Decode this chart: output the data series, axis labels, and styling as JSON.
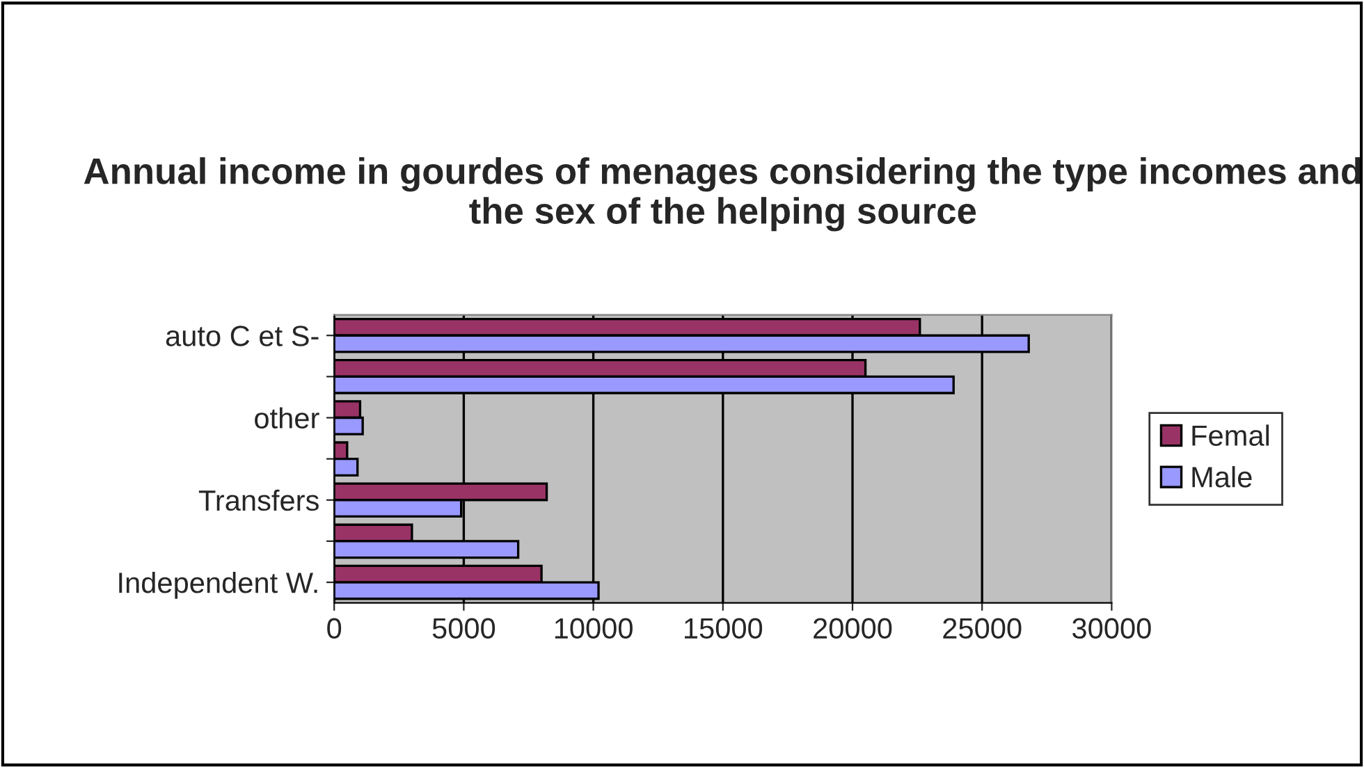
{
  "chart_data": {
    "type": "bar",
    "orientation": "horizontal",
    "title": "Annual income in gourdes of menages considering the type incomes and the sex of the helping source",
    "categories": [
      "auto C et S-",
      null,
      "other",
      null,
      "Transfers",
      null,
      "Independent W."
    ],
    "series": [
      {
        "name": "Femal",
        "color": "#993366",
        "values": [
          22600,
          20500,
          1000,
          500,
          8200,
          3000,
          8000
        ]
      },
      {
        "name": "Male",
        "color": "#9999ff",
        "values": [
          26800,
          23900,
          1100,
          900,
          4900,
          7100,
          10200
        ]
      }
    ],
    "xlim": [
      0,
      30000
    ],
    "xticks": [
      0,
      5000,
      10000,
      15000,
      20000,
      25000,
      30000
    ],
    "grid": "x",
    "legend": "right"
  }
}
